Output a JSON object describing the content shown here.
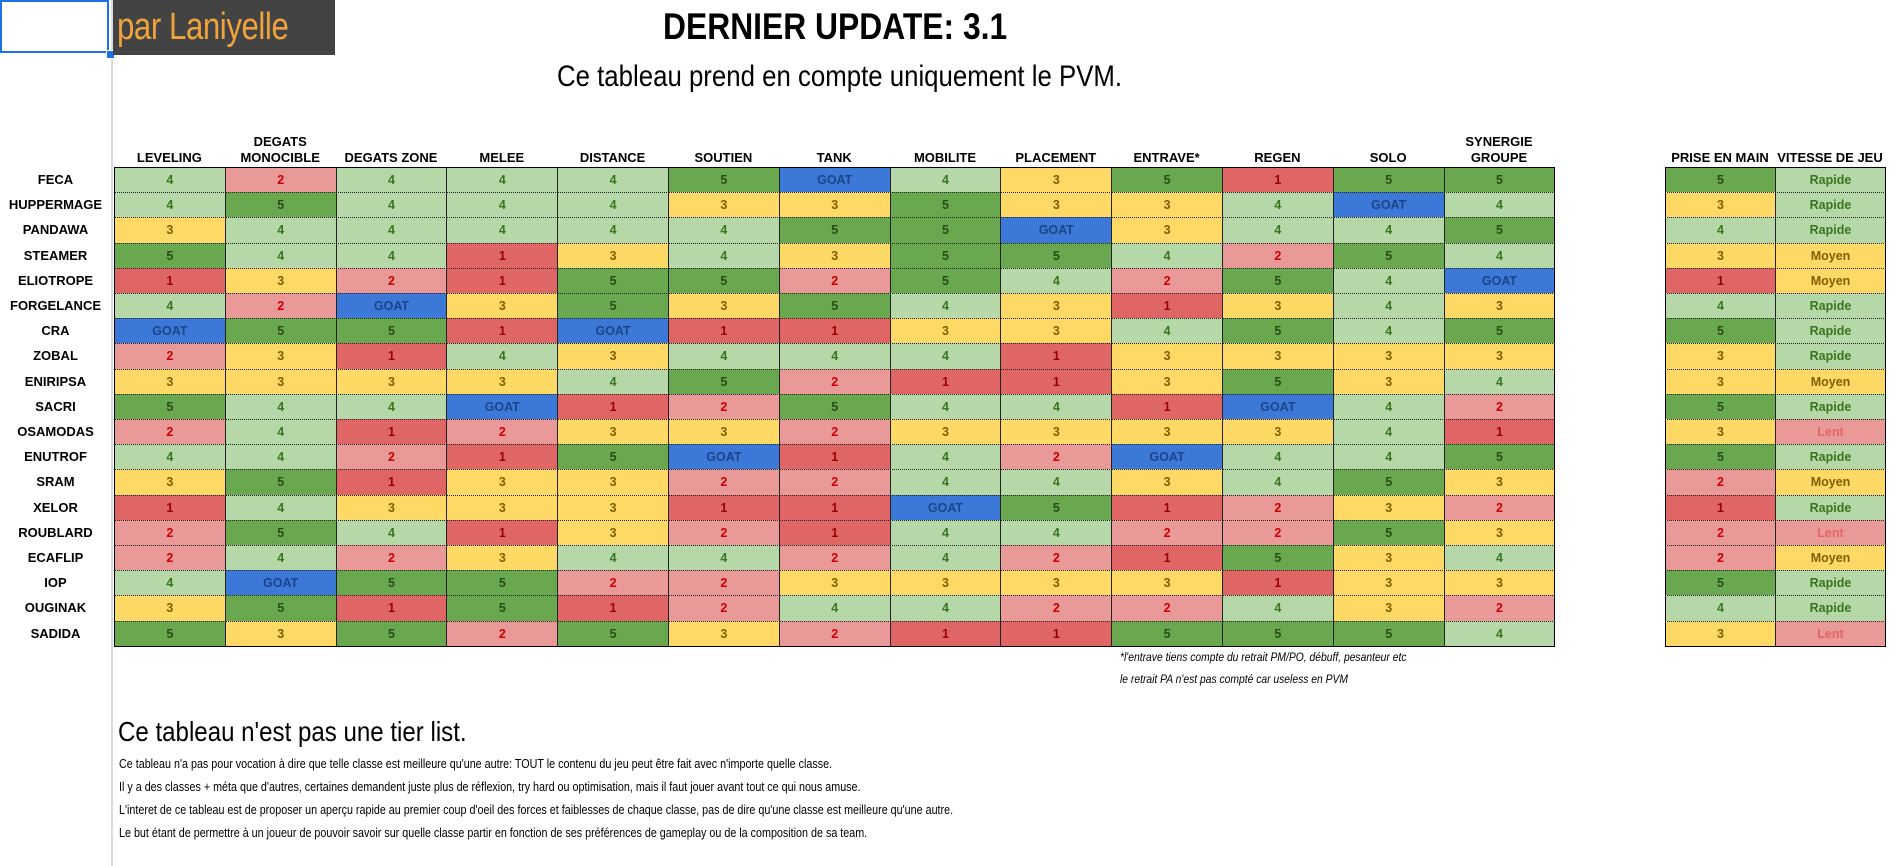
{
  "author": "par Laniyelle",
  "title": "DERNIER UPDATE: 3.1",
  "subtitle": "Ce tableau prend en compte uniquement le PVM.",
  "colors": {
    "dark_green": "#6aa84f",
    "light_green": "#b6d7a8",
    "yellow": "#ffd966",
    "pink": "#ea9999",
    "red": "#e06666",
    "blue": "#3c78d8",
    "text_dark_green": "#274e13",
    "text_light_green": "#38761d",
    "text_yellow": "#7f6000",
    "text_pink": "#cc0000",
    "text_red": "#990000",
    "text_blue": "#1c4587"
  },
  "headers": [
    "LEVELING",
    "DEGATS MONOCIBLE",
    "DEGATS ZONE",
    "MELEE",
    "DISTANCE",
    "SOUTIEN",
    "TANK",
    "MOBILITE",
    "PLACEMENT",
    "ENTRAVE*",
    "REGEN",
    "SOLO",
    "SYNERGIE GROUPE"
  ],
  "side_headers": [
    "PRISE EN MAIN",
    "VITESSE DE JEU"
  ],
  "classes": [
    "FECA",
    "HUPPERMAGE",
    "PANDAWA",
    "STEAMER",
    "ELIOTROPE",
    "FORGELANCE",
    "CRA",
    "ZOBAL",
    "ENIRIPSA",
    "SACRI",
    "OSAMODAS",
    "ENUTROF",
    "SRAM",
    "XELOR",
    "ROUBLARD",
    "ECAFLIP",
    "IOP",
    "OUGINAK",
    "SADIDA"
  ],
  "rows": [
    [
      "4",
      "2",
      "4",
      "4",
      "4",
      "5",
      "GOAT",
      "4",
      "3",
      "5",
      "1",
      "5",
      "5"
    ],
    [
      "4",
      "5",
      "4",
      "4",
      "4",
      "3",
      "3",
      "5",
      "3",
      "3",
      "4",
      "GOAT",
      "4"
    ],
    [
      "3",
      "4",
      "4",
      "4",
      "4",
      "4",
      "5",
      "5",
      "GOAT",
      "3",
      "4",
      "4",
      "5"
    ],
    [
      "5",
      "4",
      "4",
      "1",
      "3",
      "4",
      "3",
      "5",
      "5",
      "4",
      "2",
      "5",
      "4"
    ],
    [
      "1",
      "3",
      "2",
      "1",
      "5",
      "5",
      "2",
      "5",
      "4",
      "2",
      "5",
      "4",
      "GOAT"
    ],
    [
      "4",
      "2",
      "GOAT",
      "3",
      "5",
      "3",
      "5",
      "4",
      "3",
      "1",
      "3",
      "4",
      "3"
    ],
    [
      "GOAT",
      "5",
      "5",
      "1",
      "GOAT",
      "1",
      "1",
      "3",
      "3",
      "4",
      "5",
      "4",
      "5"
    ],
    [
      "2",
      "3",
      "1",
      "4",
      "3",
      "4",
      "4",
      "4",
      "1",
      "3",
      "3",
      "3",
      "3"
    ],
    [
      "3",
      "3",
      "3",
      "3",
      "4",
      "5",
      "2",
      "1",
      "1",
      "3",
      "5",
      "3",
      "4"
    ],
    [
      "5",
      "4",
      "4",
      "GOAT",
      "1",
      "2",
      "5",
      "4",
      "4",
      "1",
      "GOAT",
      "4",
      "2"
    ],
    [
      "2",
      "4",
      "1",
      "2",
      "3",
      "3",
      "2",
      "3",
      "3",
      "3",
      "3",
      "4",
      "1"
    ],
    [
      "4",
      "4",
      "2",
      "1",
      "5",
      "GOAT",
      "1",
      "4",
      "2",
      "GOAT",
      "4",
      "4",
      "5"
    ],
    [
      "3",
      "5",
      "1",
      "3",
      "3",
      "2",
      "2",
      "4",
      "4",
      "3",
      "4",
      "5",
      "3"
    ],
    [
      "1",
      "4",
      "3",
      "3",
      "3",
      "1",
      "1",
      "GOAT",
      "5",
      "1",
      "2",
      "3",
      "2"
    ],
    [
      "2",
      "5",
      "4",
      "1",
      "3",
      "2",
      "1",
      "4",
      "4",
      "2",
      "2",
      "5",
      "3"
    ],
    [
      "2",
      "4",
      "2",
      "3",
      "4",
      "4",
      "2",
      "4",
      "2",
      "1",
      "5",
      "3",
      "4"
    ],
    [
      "4",
      "GOAT",
      "5",
      "5",
      "2",
      "2",
      "3",
      "3",
      "3",
      "3",
      "1",
      "3",
      "3"
    ],
    [
      "3",
      "5",
      "1",
      "5",
      "1",
      "2",
      "4",
      "4",
      "2",
      "2",
      "4",
      "3",
      "2"
    ],
    [
      "5",
      "3",
      "5",
      "2",
      "5",
      "3",
      "2",
      "1",
      "1",
      "5",
      "5",
      "5",
      "4"
    ]
  ],
  "side_rows": [
    [
      "5",
      "Rapide"
    ],
    [
      "3",
      "Rapide"
    ],
    [
      "4",
      "Rapide"
    ],
    [
      "3",
      "Moyen"
    ],
    [
      "1",
      "Moyen"
    ],
    [
      "4",
      "Rapide"
    ],
    [
      "5",
      "Rapide"
    ],
    [
      "3",
      "Rapide"
    ],
    [
      "3",
      "Moyen"
    ],
    [
      "5",
      "Rapide"
    ],
    [
      "3",
      "Lent"
    ],
    [
      "5",
      "Rapide"
    ],
    [
      "2",
      "Moyen"
    ],
    [
      "1",
      "Rapide"
    ],
    [
      "2",
      "Lent"
    ],
    [
      "2",
      "Moyen"
    ],
    [
      "5",
      "Rapide"
    ],
    [
      "4",
      "Rapide"
    ],
    [
      "3",
      "Lent"
    ]
  ],
  "notes": [
    "*l'entrave tiens compte du retrait PM/PO, débuff, pesanteur etc",
    " le retrait PA n'est pas compté car useless en PVM"
  ],
  "bottom_title": "Ce tableau n'est pas une tier list.",
  "paragraphs": [
    "Ce tableau n'a pas pour vocation à dire que telle classe est meilleure qu'une autre: TOUT le contenu du jeu peut être fait avec n'importe quelle classe.",
    "Il y a des classes + méta que d'autres, certaines demandent juste plus de réflexion, try hard ou optimisation, mais il faut jouer avant tout ce qui nous amuse.",
    "L'interet de ce tableau est de proposer un aperçu rapide au premier coup d'oeil des forces et faiblesses de chaque classe, pas de dire qu'une classe est meilleure qu'une autre.",
    "Le but étant de permettre à un joueur de pouvoir savoir sur quelle classe partir en fonction de ses préférences de gameplay ou de la composition de sa team."
  ]
}
